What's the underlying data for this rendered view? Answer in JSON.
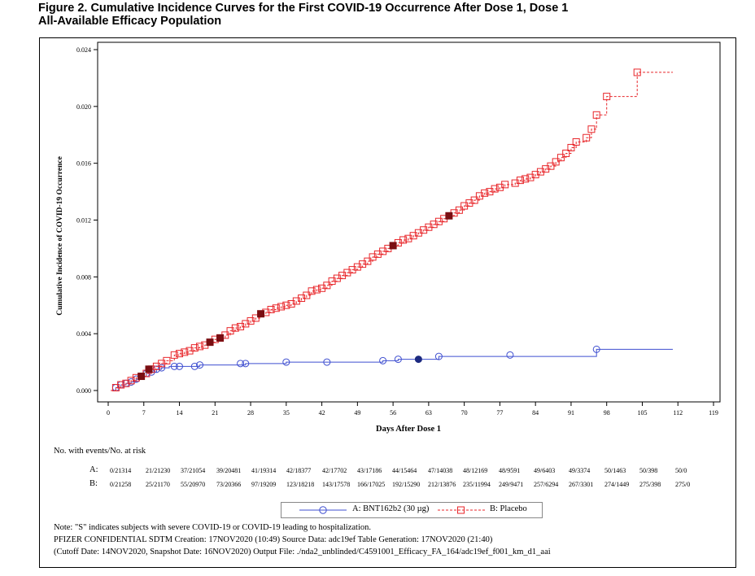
{
  "figure": {
    "title_line1": "Figure 2. Cumulative Incidence Curves for the First COVID-19 Occurrence After Dose 1, Dose 1",
    "title_line2": "All-Available Efficacy Population"
  },
  "chart_data": {
    "type": "line",
    "xlabel": "Days After Dose 1",
    "ylabel": "Cumulative Incidence of COVID-19 Occurrence",
    "xlim": [
      0,
      119
    ],
    "ylim": [
      0,
      0.024
    ],
    "x_ticks": [
      0,
      7,
      14,
      21,
      28,
      35,
      42,
      49,
      56,
      63,
      70,
      77,
      84,
      91,
      98,
      105,
      112,
      119
    ],
    "y_ticks": [
      "0.000",
      "0.004",
      "0.008",
      "0.012",
      "0.016",
      "0.020",
      "0.024"
    ],
    "series": [
      {
        "name": "A: BNT162b2 (30 µg)",
        "color": "#3f4fd0",
        "marker": "circle",
        "step": [
          [
            0.5,
            0.0
          ],
          [
            1.5,
            0.0002
          ],
          [
            2.5,
            0.0004
          ],
          [
            3.5,
            0.0005
          ],
          [
            4.5,
            0.0006
          ],
          [
            5.5,
            0.0008
          ],
          [
            6.5,
            0.001
          ],
          [
            7.5,
            0.0012
          ],
          [
            8.5,
            0.0013
          ],
          [
            9.5,
            0.0015
          ],
          [
            10.5,
            0.0016
          ],
          [
            12,
            0.0017
          ],
          [
            13,
            0.0017
          ],
          [
            14,
            0.0017
          ],
          [
            15,
            0.0017
          ],
          [
            17,
            0.0017
          ],
          [
            18,
            0.0018
          ],
          [
            26,
            0.0018
          ],
          [
            27,
            0.0019
          ],
          [
            35,
            0.002
          ],
          [
            43,
            0.002
          ],
          [
            54,
            0.0021
          ],
          [
            57,
            0.0022
          ],
          [
            61,
            0.0022
          ],
          [
            65,
            0.0024
          ],
          [
            79,
            0.0024
          ],
          [
            96,
            0.0025
          ],
          [
            96,
            0.0029
          ],
          [
            111,
            0.0029
          ]
        ],
        "markers": [
          [
            1.5,
            0.0002
          ],
          [
            2.5,
            0.0004
          ],
          [
            3.5,
            0.0005
          ],
          [
            4.5,
            0.0006
          ],
          [
            5.5,
            0.0008
          ],
          [
            6.5,
            0.001
          ],
          [
            7.5,
            0.0012
          ],
          [
            8.5,
            0.0013
          ],
          [
            9.5,
            0.0015
          ],
          [
            10.5,
            0.0016
          ],
          [
            13,
            0.0017
          ],
          [
            14,
            0.0017
          ],
          [
            17,
            0.0017
          ],
          [
            18,
            0.0018
          ],
          [
            26,
            0.0019
          ],
          [
            27,
            0.0019
          ],
          [
            35,
            0.002
          ],
          [
            43,
            0.002
          ],
          [
            54,
            0.0021
          ],
          [
            57,
            0.0022
          ],
          [
            65,
            0.0024
          ],
          [
            79,
            0.0025
          ],
          [
            96,
            0.0029
          ]
        ],
        "severe": [
          [
            61,
            0.0022
          ]
        ]
      },
      {
        "name": "B: Placebo",
        "color": "#e8262a",
        "marker": "square",
        "step": [
          [
            0.5,
            0.0
          ],
          [
            1.5,
            0.0002
          ],
          [
            2.5,
            0.0004
          ],
          [
            3.5,
            0.0005
          ],
          [
            4.5,
            0.0007
          ],
          [
            5.5,
            0.0009
          ],
          [
            6.5,
            0.001
          ],
          [
            7.5,
            0.0012
          ],
          [
            8.5,
            0.0015
          ],
          [
            9.5,
            0.0017
          ],
          [
            10.5,
            0.0019
          ],
          [
            11.5,
            0.0021
          ],
          [
            13,
            0.0025
          ],
          [
            14,
            0.0026
          ],
          [
            15,
            0.0027
          ],
          [
            16,
            0.0028
          ],
          [
            17,
            0.003
          ],
          [
            18,
            0.0031
          ],
          [
            19,
            0.0032
          ],
          [
            20,
            0.0034
          ],
          [
            21,
            0.0036
          ],
          [
            22,
            0.0037
          ],
          [
            23,
            0.0039
          ],
          [
            24,
            0.0042
          ],
          [
            25,
            0.0044
          ],
          [
            26,
            0.0045
          ],
          [
            27,
            0.0047
          ],
          [
            28,
            0.0049
          ],
          [
            29,
            0.0051
          ],
          [
            30,
            0.0054
          ],
          [
            31,
            0.0055
          ],
          [
            32,
            0.0057
          ],
          [
            33,
            0.0058
          ],
          [
            34,
            0.0059
          ],
          [
            35,
            0.006
          ],
          [
            36,
            0.0061
          ],
          [
            37,
            0.0063
          ],
          [
            38,
            0.0065
          ],
          [
            39,
            0.0067
          ],
          [
            40,
            0.007
          ],
          [
            41,
            0.0071
          ],
          [
            42,
            0.0072
          ],
          [
            43,
            0.0074
          ],
          [
            44,
            0.0077
          ],
          [
            45,
            0.0079
          ],
          [
            46,
            0.0081
          ],
          [
            47,
            0.0083
          ],
          [
            48,
            0.0085
          ],
          [
            49,
            0.0087
          ],
          [
            50,
            0.0089
          ],
          [
            51,
            0.0091
          ],
          [
            52,
            0.0094
          ],
          [
            53,
            0.0096
          ],
          [
            54,
            0.0098
          ],
          [
            55,
            0.01
          ],
          [
            56,
            0.0102
          ],
          [
            57,
            0.0104
          ],
          [
            58,
            0.0106
          ],
          [
            59,
            0.0107
          ],
          [
            60,
            0.0109
          ],
          [
            61,
            0.0111
          ],
          [
            62,
            0.0113
          ],
          [
            63,
            0.0115
          ],
          [
            64,
            0.0117
          ],
          [
            65,
            0.0119
          ],
          [
            66,
            0.0121
          ],
          [
            67,
            0.0123
          ],
          [
            68,
            0.0125
          ],
          [
            69,
            0.0127
          ],
          [
            70,
            0.013
          ],
          [
            71,
            0.0132
          ],
          [
            72,
            0.0134
          ],
          [
            73,
            0.0137
          ],
          [
            74,
            0.0139
          ],
          [
            75,
            0.014
          ],
          [
            76,
            0.0142
          ],
          [
            77,
            0.0143
          ],
          [
            78,
            0.0145
          ],
          [
            80,
            0.0146
          ],
          [
            81,
            0.0148
          ],
          [
            82,
            0.0149
          ],
          [
            83,
            0.015
          ],
          [
            84,
            0.0152
          ],
          [
            85,
            0.0154
          ],
          [
            86,
            0.0156
          ],
          [
            87,
            0.0158
          ],
          [
            88,
            0.0161
          ],
          [
            89,
            0.0164
          ],
          [
            90,
            0.0167
          ],
          [
            91,
            0.0171
          ],
          [
            92,
            0.0175
          ],
          [
            94,
            0.0178
          ],
          [
            95,
            0.0184
          ],
          [
            96,
            0.0194
          ],
          [
            98,
            0.0207
          ],
          [
            104,
            0.0207
          ],
          [
            104,
            0.0224
          ],
          [
            111,
            0.0224
          ]
        ],
        "markers": [
          [
            1.5,
            0.0002
          ],
          [
            2.5,
            0.0004
          ],
          [
            3.5,
            0.0005
          ],
          [
            4.5,
            0.0007
          ],
          [
            5.5,
            0.0009
          ],
          [
            7.5,
            0.0012
          ],
          [
            8.5,
            0.0015
          ],
          [
            9.5,
            0.0017
          ],
          [
            10.5,
            0.0019
          ],
          [
            11.5,
            0.0021
          ],
          [
            13,
            0.0025
          ],
          [
            14,
            0.0026
          ],
          [
            15,
            0.0027
          ],
          [
            16,
            0.0028
          ],
          [
            17,
            0.003
          ],
          [
            18,
            0.0031
          ],
          [
            19,
            0.0032
          ],
          [
            21,
            0.0036
          ],
          [
            22,
            0.0037
          ],
          [
            23,
            0.0039
          ],
          [
            24,
            0.0042
          ],
          [
            25,
            0.0044
          ],
          [
            26,
            0.0045
          ],
          [
            27,
            0.0047
          ],
          [
            28,
            0.0049
          ],
          [
            29,
            0.0051
          ],
          [
            31,
            0.0055
          ],
          [
            32,
            0.0057
          ],
          [
            33,
            0.0058
          ],
          [
            34,
            0.0059
          ],
          [
            35,
            0.006
          ],
          [
            36,
            0.0061
          ],
          [
            37,
            0.0063
          ],
          [
            38,
            0.0065
          ],
          [
            39,
            0.0067
          ],
          [
            40,
            0.007
          ],
          [
            41,
            0.0071
          ],
          [
            42,
            0.0072
          ],
          [
            43,
            0.0074
          ],
          [
            44,
            0.0077
          ],
          [
            45,
            0.0079
          ],
          [
            46,
            0.0081
          ],
          [
            47,
            0.0083
          ],
          [
            48,
            0.0085
          ],
          [
            49,
            0.0087
          ],
          [
            50,
            0.0089
          ],
          [
            51,
            0.0091
          ],
          [
            52,
            0.0094
          ],
          [
            53,
            0.0096
          ],
          [
            54,
            0.0098
          ],
          [
            55,
            0.01
          ],
          [
            57,
            0.0104
          ],
          [
            58,
            0.0106
          ],
          [
            59,
            0.0107
          ],
          [
            60,
            0.0109
          ],
          [
            61,
            0.0111
          ],
          [
            62,
            0.0113
          ],
          [
            63,
            0.0115
          ],
          [
            64,
            0.0117
          ],
          [
            65,
            0.0119
          ],
          [
            66,
            0.0121
          ],
          [
            68,
            0.0125
          ],
          [
            69,
            0.0127
          ],
          [
            70,
            0.013
          ],
          [
            71,
            0.0132
          ],
          [
            72,
            0.0134
          ],
          [
            73,
            0.0137
          ],
          [
            74,
            0.0139
          ],
          [
            75,
            0.014
          ],
          [
            76,
            0.0142
          ],
          [
            77,
            0.0143
          ],
          [
            78,
            0.0145
          ],
          [
            80,
            0.0146
          ],
          [
            81,
            0.0148
          ],
          [
            82,
            0.0149
          ],
          [
            83,
            0.015
          ],
          [
            84,
            0.0152
          ],
          [
            85,
            0.0154
          ],
          [
            86,
            0.0156
          ],
          [
            87,
            0.0158
          ],
          [
            88,
            0.0161
          ],
          [
            89,
            0.0164
          ],
          [
            90,
            0.0167
          ],
          [
            91,
            0.0171
          ],
          [
            92,
            0.0175
          ],
          [
            94,
            0.0178
          ],
          [
            95,
            0.0184
          ],
          [
            96,
            0.0194
          ],
          [
            98,
            0.0207
          ],
          [
            104,
            0.0224
          ]
        ],
        "severe": [
          [
            6.5,
            0.001
          ],
          [
            8,
            0.0015
          ],
          [
            20,
            0.0034
          ],
          [
            22,
            0.0037
          ],
          [
            30,
            0.0054
          ],
          [
            56,
            0.0102
          ],
          [
            67,
            0.0123
          ]
        ]
      }
    ],
    "severe_colors": {
      "A": "#1c2a80",
      "B": "#7a0e12"
    }
  },
  "risk_table": {
    "header": "No. with events/No. at risk",
    "rows": [
      {
        "label": "A:",
        "cells": [
          "0/21314",
          "21/21230",
          "37/21054",
          "39/20481",
          "41/19314",
          "42/18377",
          "42/17702",
          "43/17186",
          "44/15464",
          "47/14038",
          "48/12169",
          "48/9591",
          "49/6403",
          "49/3374",
          "50/1463",
          "50/398",
          "50/0"
        ]
      },
      {
        "label": "B:",
        "cells": [
          "0/21258",
          "25/21170",
          "55/20970",
          "73/20366",
          "97/19209",
          "123/18218",
          "143/17578",
          "166/17025",
          "192/15290",
          "212/13876",
          "235/11994",
          "249/9471",
          "257/6294",
          "267/3301",
          "274/1449",
          "275/398",
          "275/0"
        ]
      }
    ]
  },
  "legend": {
    "a_label": "A: BNT162b2 (30 µg)",
    "b_label": "B: Placebo"
  },
  "footnotes": {
    "note": "Note: \"S\" indicates subjects with severe COVID-19 or COVID-19 leading to hospitalization.",
    "line2": "PFIZER CONFIDENTIAL  SDTM Creation: 17NOV2020 (10:49)  Source Data: adc19ef  Table Generation: 17NOV2020 (21:40)",
    "line3": "(Cutoff Date: 14NOV2020, Snapshot Date: 16NOV2020) Output File: ./nda2_unblinded/C4591001_Efficacy_FA_164/adc19ef_f001_km_d1_aai"
  }
}
